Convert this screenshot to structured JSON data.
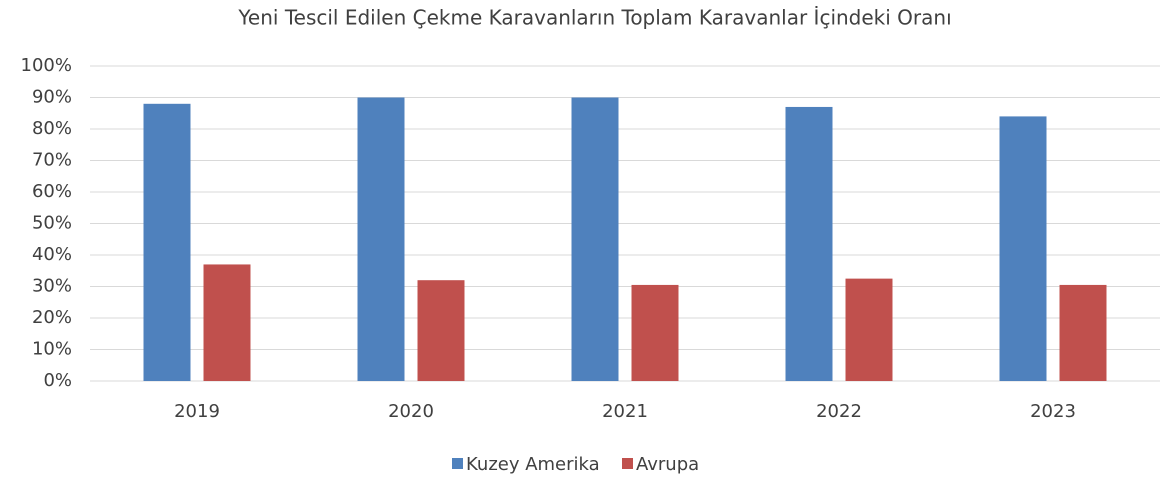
{
  "chart_data": {
    "type": "bar",
    "title": "Yeni Tescil Edilen Çekme Karavanların Toplam Karavanlar İçindeki Oranı",
    "categories": [
      "2019",
      "2020",
      "2021",
      "2022",
      "2023"
    ],
    "series": [
      {
        "name": "Kuzey Amerika",
        "color": "#4f81bd",
        "values": [
          88,
          90,
          90,
          87,
          84
        ]
      },
      {
        "name": "Avrupa",
        "color": "#c0504d",
        "values": [
          37,
          32,
          30.5,
          32.5,
          30.5
        ]
      }
    ],
    "ylim": [
      0,
      100
    ],
    "yticks": [
      {
        "value": 0,
        "label": "0%"
      },
      {
        "value": 10,
        "label": "10%"
      },
      {
        "value": 20,
        "label": "20%"
      },
      {
        "value": 30,
        "label": "30%"
      },
      {
        "value": 40,
        "label": "40%"
      },
      {
        "value": 50,
        "label": "50%"
      },
      {
        "value": 60,
        "label": "60%"
      },
      {
        "value": 70,
        "label": "70%"
      },
      {
        "value": 80,
        "label": "80%"
      },
      {
        "value": 90,
        "label": "90%"
      },
      {
        "value": 100,
        "label": "100%"
      }
    ],
    "grid": true,
    "legend": "bottom"
  }
}
